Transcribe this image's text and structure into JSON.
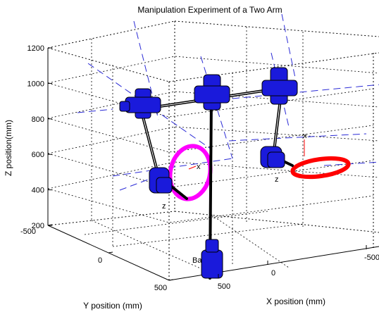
{
  "chart_data": {
    "type": "3d-line",
    "title": "Manipulation Experiment of a Two Arm",
    "xlabel": "X position (mm)",
    "ylabel": "Y position (mm)",
    "zlabel": "Z position(mm)",
    "x_ticks": [
      "500",
      "0",
      "-500"
    ],
    "y_ticks": [
      "-500",
      "0",
      "500"
    ],
    "z_ticks": [
      "200",
      "400",
      "600",
      "800",
      "1000",
      "1200"
    ],
    "xlim": [
      -500,
      500
    ],
    "ylim": [
      -500,
      500
    ],
    "zlim": [
      200,
      1200
    ],
    "grid": true,
    "annotations": [
      "Ba",
      "x",
      "z",
      "x",
      "z"
    ],
    "colors": {
      "links": "#000000",
      "joints": "#1a1adb",
      "axes_dashed": "#2b2bd6",
      "left_trajectory": "#ff00ff",
      "right_trajectory": "#ff0000"
    }
  }
}
